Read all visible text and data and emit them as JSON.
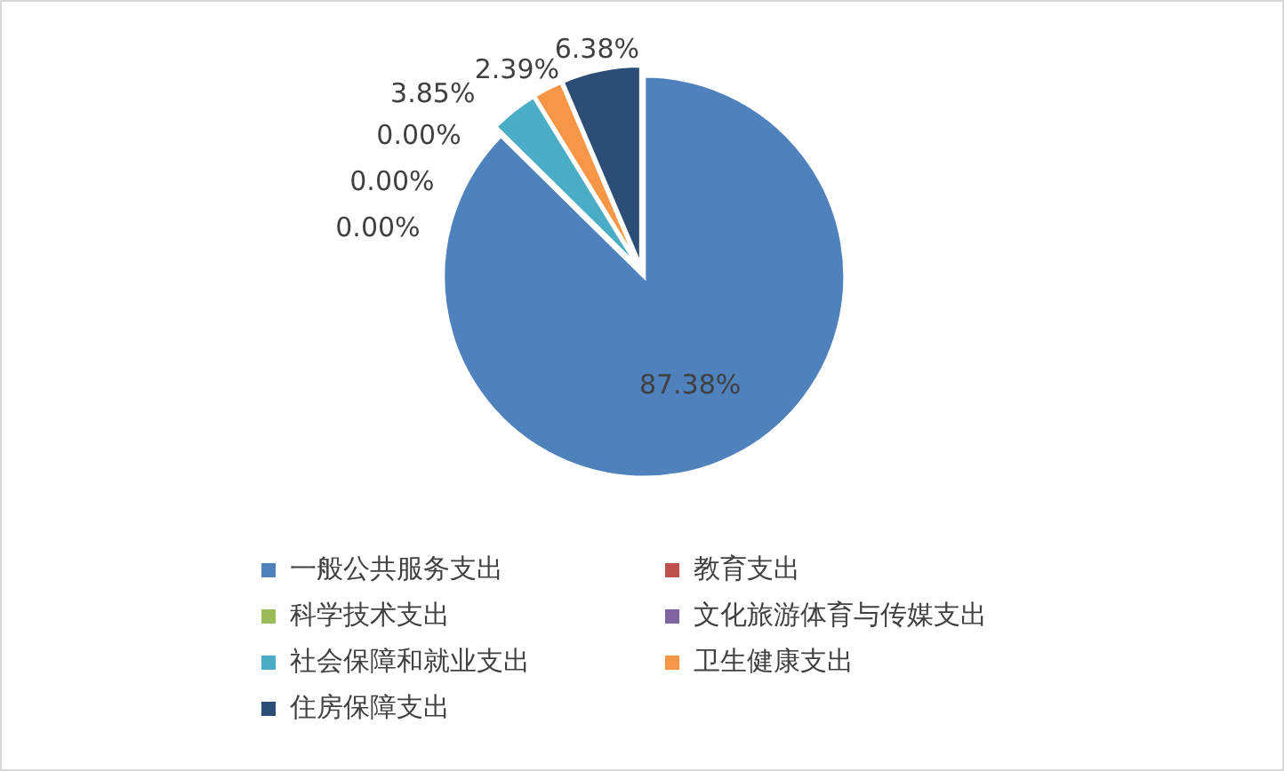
{
  "chart_data": {
    "type": "pie",
    "categories": [
      "一般公共服务支出",
      "教育支出",
      "科学技术支出",
      "文化旅游体育与传媒支出",
      "社会保障和就业支出",
      "卫生健康支出",
      "住房保障支出"
    ],
    "values": [
      87.38,
      0,
      0,
      0,
      3.85,
      2.39,
      6.38
    ],
    "colors": [
      "#4f81bd",
      "#c0504d",
      "#9bbb59",
      "#8064a2",
      "#4bacc6",
      "#f79646",
      "#2c4d75"
    ],
    "value_labels": [
      "87.38%",
      "0.00%",
      "0.00%",
      "0.00%",
      "3.85%",
      "2.39%",
      "6.38%"
    ],
    "legend": "bottom"
  }
}
